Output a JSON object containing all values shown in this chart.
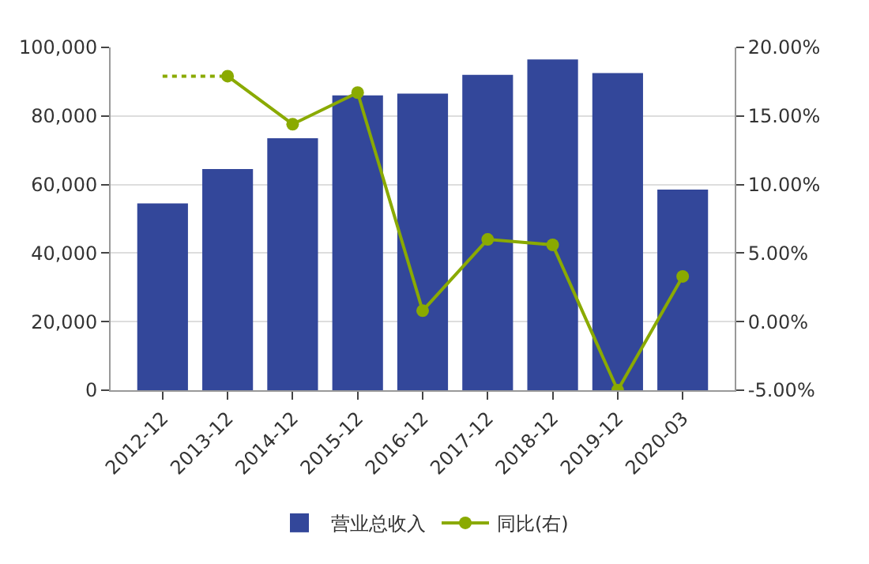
{
  "chart_data": {
    "type": "bar",
    "categories": [
      "2012-12",
      "2013-12",
      "2014-12",
      "2015-12",
      "2016-12",
      "2017-12",
      "2018-12",
      "2019-12",
      "2020-03"
    ],
    "series": [
      {
        "name": "营业总收入",
        "color": "#33479a",
        "values": [
          54500,
          64500,
          73500,
          86000,
          86500,
          92000,
          96500,
          92500,
          58500
        ]
      },
      {
        "name": "同比(右)",
        "type": "line",
        "axis": "y2",
        "color": "#8aaa00",
        "marker": "circle",
        "line_style": "solid",
        "values": [
          null,
          17.9,
          14.4,
          16.7,
          0.8,
          6.0,
          5.6,
          -5.0,
          3.3
        ]
      },
      {
        "type": "line",
        "axis": "y2",
        "color": "#8aaa00",
        "marker": "none",
        "line_style": "dotted",
        "values": [
          17.9,
          17.9,
          null,
          null,
          null,
          null,
          null,
          null,
          null
        ]
      }
    ],
    "ylim": [
      0,
      100000
    ],
    "yticks": [
      0,
      {
        "value": 20000,
        "label": "20,000"
      },
      {
        "value": 40000,
        "label": "40,000"
      },
      {
        "value": 60000,
        "label": "60,000"
      },
      {
        "value": 80000,
        "label": "80,000"
      },
      {
        "value": 100000,
        "label": "100,000"
      }
    ],
    "y2lim": [
      -5,
      20
    ],
    "y2ticks": [
      {
        "value": -5,
        "label": "-5.00%"
      },
      {
        "value": 0,
        "label": "0.00%"
      },
      {
        "value": 5,
        "label": "5.00%"
      },
      {
        "value": 10,
        "label": "10.00%"
      },
      {
        "value": 15,
        "label": "15.00%"
      },
      {
        "value": 20,
        "label": "20.00%"
      }
    ],
    "grid": "y",
    "legend": "bottom"
  }
}
